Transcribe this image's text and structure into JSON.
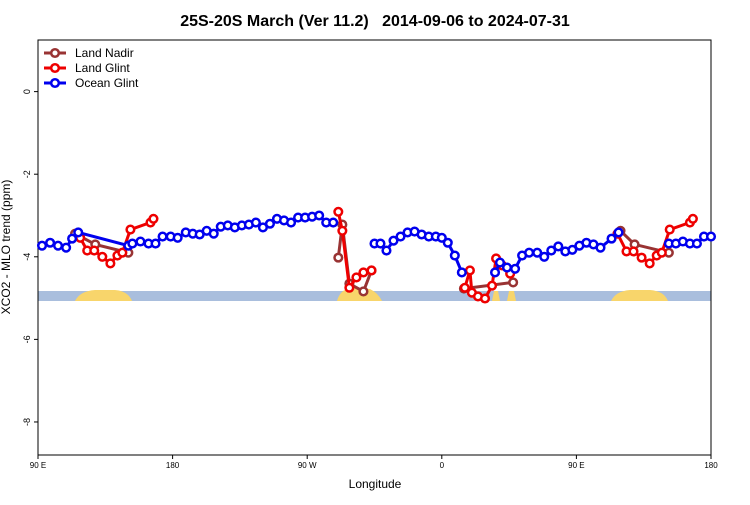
{
  "chart_data": {
    "type": "line",
    "title": "25S-20S March (Ver 11.2)   2014-09-06 to 2024-07-31",
    "x_label": "Longitude",
    "y_label": "XCO2 - MLO trend (ppm)",
    "xlim": [
      90,
      540
    ],
    "ylim": [
      -8.8,
      1.25
    ],
    "xticks": [
      {
        "value": 90,
        "label": "90 E"
      },
      180,
      {
        "value": 270,
        "label": "90 W"
      },
      {
        "value": 360,
        "label": "0"
      },
      {
        "value": 450,
        "label": "90 E"
      },
      {
        "value": 540,
        "label": "180"
      }
    ],
    "yticks": [
      0,
      -2,
      -4,
      -6,
      -8
    ],
    "grid": false,
    "legend": "top-left",
    "series": [
      {
        "name": "Land Nadir",
        "color": "#993333",
        "x": [
          114.8,
          128.3,
          150.4,
          null,
          290.8,
          293.5,
          298.2,
          307.6,
          313.0,
          null,
          374.8,
          407.7,
          null,
          479.5,
          488.9,
          511.8
        ],
        "values": [
          -3.44,
          -3.7,
          -3.9,
          null,
          -4.02,
          -3.22,
          -4.65,
          -4.84,
          -4.33,
          null,
          -4.77,
          -4.62,
          null,
          -3.37,
          -3.7,
          -3.9
        ]
      },
      {
        "name": "Land Glint",
        "color": "#ee0000",
        "x": [
          118.2,
          122.9,
          127.6,
          133.0,
          138.4,
          143.1,
          146.4,
          151.8,
          165.2,
          167.2,
          null,
          290.8,
          293.5,
          298.2,
          302.9,
          307.6,
          313.0,
          null,
          375.4,
          378.8,
          380.1,
          384.2,
          388.9,
          393.6,
          396.3,
          400.3,
          405.7,
          null,
          477.5,
          483.5,
          488.2,
          493.6,
          499.0,
          503.7,
          507.1,
          512.4,
          525.9,
          527.9
        ],
        "values": [
          -3.54,
          -3.85,
          -3.85,
          -4.0,
          -4.16,
          -3.97,
          -3.9,
          -3.34,
          -3.17,
          -3.08,
          null,
          -2.91,
          -3.37,
          -4.75,
          -4.5,
          -4.38,
          -4.33,
          null,
          -4.75,
          -4.33,
          -4.87,
          -4.96,
          -5.01,
          -4.7,
          -4.04,
          -4.21,
          -4.41,
          null,
          -3.44,
          -3.87,
          -3.87,
          -4.02,
          -4.16,
          -3.97,
          -3.9,
          -3.34,
          -3.17,
          -3.08
        ]
      },
      {
        "name": "Ocean Glint",
        "color": "#0000ee",
        "x": [
          92.7,
          98.1,
          103.4,
          108.8,
          112.8,
          116.9,
          150.4,
          153.1,
          158.5,
          163.9,
          168.6,
          173.3,
          178.7,
          183.4,
          188.8,
          193.5,
          198.1,
          202.8,
          207.5,
          212.2,
          216.9,
          221.6,
          226.3,
          231.0,
          235.7,
          240.4,
          245.1,
          249.8,
          254.5,
          259.2,
          263.9,
          268.6,
          273.3,
          278.0,
          282.7,
          287.4,
          null,
          315.0,
          319.0,
          323.0,
          327.7,
          332.4,
          337.1,
          341.8,
          346.5,
          351.3,
          356.0,
          360.0,
          364.0,
          368.7,
          373.4,
          null,
          395.6,
          398.9,
          403.6,
          409.0,
          413.7,
          418.4,
          423.8,
          428.5,
          433.2,
          437.9,
          442.6,
          447.3,
          452.0,
          456.7,
          461.4,
          466.1,
          473.5,
          478.2,
          null,
          511.8,
          516.5,
          521.2,
          525.9,
          530.6,
          535.3,
          540.0
        ],
        "values": [
          -3.73,
          -3.66,
          -3.73,
          -3.78,
          -3.56,
          -3.41,
          -3.73,
          -3.68,
          -3.63,
          -3.68,
          -3.68,
          -3.51,
          -3.51,
          -3.54,
          -3.41,
          -3.44,
          -3.46,
          -3.37,
          -3.44,
          -3.27,
          -3.24,
          -3.29,
          -3.24,
          -3.22,
          -3.17,
          -3.29,
          -3.2,
          -3.08,
          -3.12,
          -3.17,
          -3.05,
          -3.05,
          -3.03,
          -3.0,
          -3.17,
          -3.17,
          null,
          -3.68,
          -3.68,
          -3.85,
          -3.61,
          -3.51,
          -3.41,
          -3.39,
          -3.46,
          -3.51,
          -3.51,
          -3.54,
          -3.66,
          -3.97,
          -4.38,
          null,
          -4.38,
          -4.14,
          -4.26,
          -4.29,
          -3.97,
          -3.9,
          -3.9,
          -4.0,
          -3.85,
          -3.75,
          -3.87,
          -3.83,
          -3.73,
          -3.66,
          -3.7,
          -3.78,
          -3.56,
          -3.41,
          null,
          -3.68,
          -3.68,
          -3.63,
          -3.68,
          -3.68,
          -3.51,
          -3.51
        ]
      }
    ]
  }
}
